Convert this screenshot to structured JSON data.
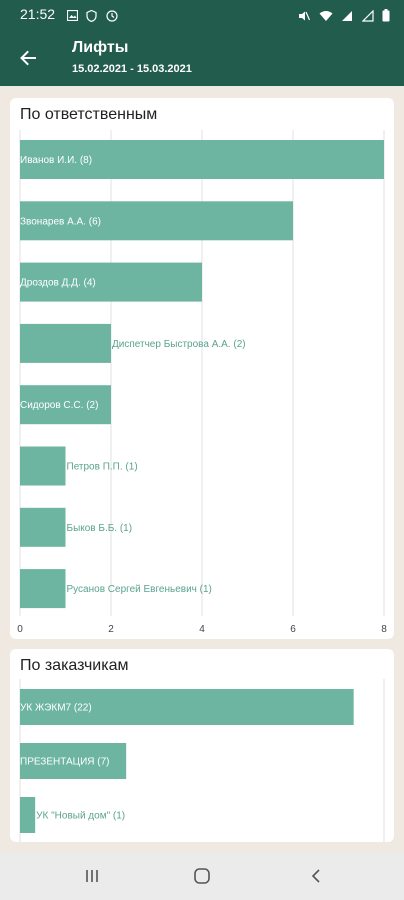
{
  "status_bar": {
    "time": "21:52"
  },
  "app_bar": {
    "title": "Лифты",
    "subtitle": "15.02.2021 - 15.03.2021"
  },
  "sections": {
    "responsible_title": "По ответственным",
    "customers_title": "По заказчикам"
  },
  "colors": {
    "bar": "#6db5a0",
    "header": "#215c4c",
    "background": "#efe9e1"
  },
  "chart_data": [
    {
      "type": "bar",
      "orientation": "horizontal",
      "title": "По ответственным",
      "categories": [
        "Иванов И.И.",
        "Звонарев А.А.",
        "Дроздов Д.Д.",
        "Диспетчер Быстрова А.А.",
        "Сидоров С.С.",
        "Петров П.П.",
        "Быков Б.Б.",
        "Русанов Сергей Евгеньевич"
      ],
      "values": [
        8,
        6,
        4,
        2,
        2,
        1,
        1,
        1
      ],
      "labels": [
        "Иванов И.И. (8)",
        "Звонарев А.А. (6)",
        "Дроздов Д.Д. (4)",
        "Диспетчер Быстрова А.А. (2)",
        "Сидоров С.С. (2)",
        "Петров П.П. (1)",
        "Быков Б.Б. (1)",
        "Русанов Сергей Евгеньевич (1)"
      ],
      "xlim": [
        0,
        8
      ],
      "xticks": [
        0,
        2,
        4,
        6,
        8
      ],
      "grid": true
    },
    {
      "type": "bar",
      "orientation": "horizontal",
      "title": "По заказчикам",
      "categories": [
        "УК ЖЭКМ7",
        "ПРЕЗЕНТАЦИЯ",
        "УК \"Новый дом\""
      ],
      "values": [
        22,
        7,
        1
      ],
      "labels": [
        "УК ЖЭКМ7 (22)",
        "ПРЕЗЕНТАЦИЯ (7)",
        "УК \"Новый дом\" (1)"
      ],
      "xlim": [
        0,
        24
      ],
      "grid": true
    }
  ]
}
